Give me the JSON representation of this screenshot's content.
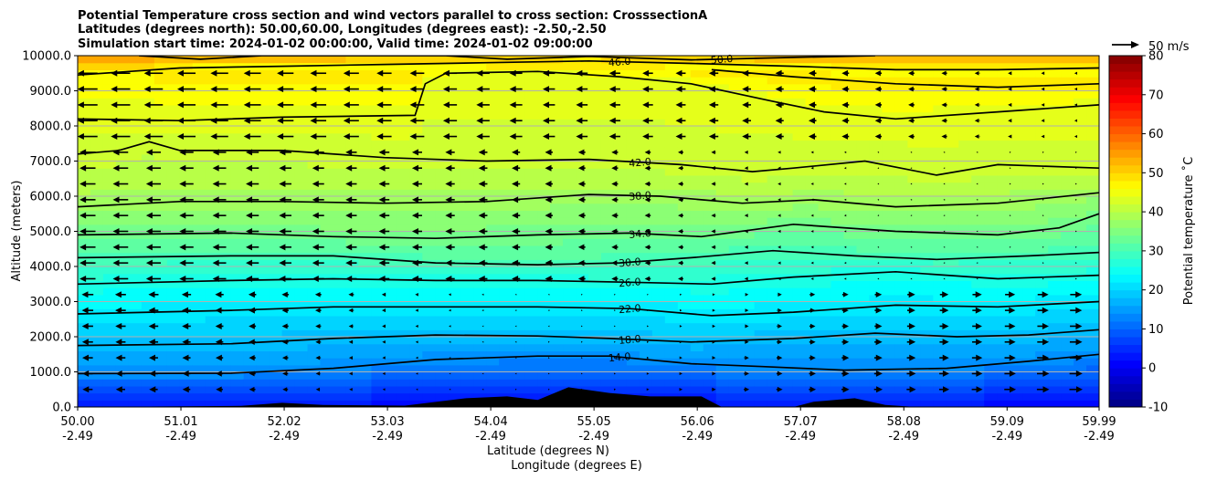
{
  "chart_data": {
    "type": "contour",
    "title_lines": [
      "Potential Temperature cross section and wind vectors parallel to cross section: CrosssectionA",
      "Latitudes (degrees north): 50.00,60.00, Longitudes (degrees east): -2.50,-2.50",
      "Simulation start time: 2024-01-02 00:00:00, Valid time: 2024-01-02 09:00:00"
    ],
    "xlabel_lines": [
      "Latitude (degrees N)",
      "Longitude (degrees E)"
    ],
    "ylabel": "Altitude (meters)",
    "xlim": [
      50.0,
      59.99
    ],
    "ylim": [
      0,
      10000
    ],
    "x_ticks": [
      {
        "value": 50.0,
        "lat": "50.00",
        "lon": "-2.49"
      },
      {
        "value": 51.01,
        "lat": "51.01",
        "lon": "-2.49"
      },
      {
        "value": 52.02,
        "lat": "52.02",
        "lon": "-2.49"
      },
      {
        "value": 53.03,
        "lat": "53.03",
        "lon": "-2.49"
      },
      {
        "value": 54.04,
        "lat": "54.04",
        "lon": "-2.49"
      },
      {
        "value": 55.05,
        "lat": "55.05",
        "lon": "-2.49"
      },
      {
        "value": 56.06,
        "lat": "56.06",
        "lon": "-2.49"
      },
      {
        "value": 57.07,
        "lat": "57.07",
        "lon": "-2.49"
      },
      {
        "value": 58.08,
        "lat": "58.08",
        "lon": "-2.49"
      },
      {
        "value": 59.09,
        "lat": "59.09",
        "lon": "-2.49"
      },
      {
        "value": 59.99,
        "lat": "59.99",
        "lon": "-2.49"
      }
    ],
    "y_ticks": [
      "0.0",
      "1000.0",
      "2000.0",
      "3000.0",
      "4000.0",
      "5000.0",
      "6000.0",
      "7000.0",
      "8000.0",
      "9000.0",
      "10000.0"
    ],
    "y_tick_values": [
      0,
      1000,
      2000,
      3000,
      4000,
      5000,
      6000,
      7000,
      8000,
      9000,
      10000
    ],
    "colorbar": {
      "label": "Potential temperature $^\\circ$C",
      "label_display": "Potential temperature ˚C",
      "range": [
        -10,
        80
      ],
      "ticks": [
        "-10",
        "0",
        "10",
        "20",
        "30",
        "40",
        "50",
        "60",
        "70",
        "80"
      ],
      "tick_values": [
        -10,
        0,
        10,
        20,
        30,
        40,
        50,
        60,
        70,
        80
      ],
      "colormap": "jet"
    },
    "quiver_key": {
      "label": "50 m/s",
      "speed": 50
    },
    "contour_levels": [
      {
        "label": "14.0",
        "value": 14,
        "points": [
          [
            50.0,
            950
          ],
          [
            51.5,
            960
          ],
          [
            52.5,
            1100
          ],
          [
            53.5,
            1350
          ],
          [
            54.5,
            1450
          ],
          [
            55.2,
            1450
          ],
          [
            56.0,
            1230
          ],
          [
            56.7,
            1150
          ],
          [
            57.5,
            1050
          ],
          [
            58.5,
            1100
          ],
          [
            59.3,
            1300
          ],
          [
            59.99,
            1500
          ]
        ]
      },
      {
        "label": "18.0",
        "value": 18,
        "points": [
          [
            50.0,
            1750
          ],
          [
            51.5,
            1800
          ],
          [
            52.5,
            1950
          ],
          [
            53.5,
            2050
          ],
          [
            54.5,
            2020
          ],
          [
            55.2,
            1950
          ],
          [
            56.0,
            1850
          ],
          [
            57.0,
            1950
          ],
          [
            57.8,
            2100
          ],
          [
            58.6,
            2000
          ],
          [
            59.3,
            2050
          ],
          [
            59.99,
            2200
          ]
        ]
      },
      {
        "label": "22.0",
        "value": 22,
        "points": [
          [
            50.0,
            2650
          ],
          [
            51.5,
            2750
          ],
          [
            52.5,
            2850
          ],
          [
            53.5,
            2850
          ],
          [
            54.5,
            2850
          ],
          [
            55.4,
            2800
          ],
          [
            56.2,
            2600
          ],
          [
            57.0,
            2700
          ],
          [
            58.0,
            2900
          ],
          [
            59.0,
            2850
          ],
          [
            59.99,
            3000
          ]
        ]
      },
      {
        "label": "26.0",
        "value": 26,
        "points": [
          [
            50.0,
            3500
          ],
          [
            51.5,
            3600
          ],
          [
            52.5,
            3650
          ],
          [
            53.5,
            3600
          ],
          [
            54.5,
            3600
          ],
          [
            55.4,
            3550
          ],
          [
            56.2,
            3500
          ],
          [
            57.0,
            3700
          ],
          [
            58.0,
            3850
          ],
          [
            59.0,
            3650
          ],
          [
            59.99,
            3750
          ]
        ]
      },
      {
        "label": "30.0",
        "value": 30,
        "points": [
          [
            50.0,
            4250
          ],
          [
            51.5,
            4300
          ],
          [
            52.5,
            4300
          ],
          [
            53.5,
            4100
          ],
          [
            54.5,
            4050
          ],
          [
            55.3,
            4100
          ],
          [
            56.0,
            4250
          ],
          [
            56.8,
            4450
          ],
          [
            57.6,
            4300
          ],
          [
            58.4,
            4200
          ],
          [
            59.3,
            4300
          ],
          [
            59.99,
            4400
          ]
        ]
      },
      {
        "label": "34.0",
        "value": 34,
        "points": [
          [
            50.0,
            4900
          ],
          [
            51.5,
            4950
          ],
          [
            52.5,
            4850
          ],
          [
            53.5,
            4800
          ],
          [
            54.5,
            4900
          ],
          [
            55.4,
            4950
          ],
          [
            56.1,
            4850
          ],
          [
            57.0,
            5200
          ],
          [
            58.0,
            5000
          ],
          [
            59.0,
            4900
          ],
          [
            59.6,
            5100
          ],
          [
            59.99,
            5500
          ]
        ]
      },
      {
        "label": "38.0",
        "value": 38,
        "points": [
          [
            50.0,
            5700
          ],
          [
            51.0,
            5850
          ],
          [
            52.0,
            5850
          ],
          [
            53.0,
            5800
          ],
          [
            54.0,
            5850
          ],
          [
            55.0,
            6050
          ],
          [
            55.7,
            6000
          ],
          [
            56.5,
            5800
          ],
          [
            57.2,
            5900
          ],
          [
            58.0,
            5700
          ],
          [
            59.0,
            5800
          ],
          [
            59.99,
            6100
          ]
        ]
      },
      {
        "label": "42.0",
        "value": 42,
        "points": [
          [
            50.0,
            7200
          ],
          [
            50.4,
            7300
          ],
          [
            50.7,
            7550
          ],
          [
            51.0,
            7300
          ],
          [
            52.0,
            7300
          ],
          [
            53.0,
            7100
          ],
          [
            54.0,
            7000
          ],
          [
            55.0,
            7050
          ],
          [
            55.9,
            6900
          ],
          [
            56.6,
            6700
          ],
          [
            57.0,
            6800
          ],
          [
            57.7,
            7000
          ],
          [
            58.4,
            6600
          ],
          [
            59.0,
            6900
          ],
          [
            59.99,
            6800
          ]
        ]
      },
      {
        "label": "46.0",
        "value": 46,
        "points": [
          [
            50.0,
            9450
          ],
          [
            51.0,
            9650
          ],
          [
            52.0,
            9700
          ],
          [
            53.0,
            9750
          ],
          [
            54.0,
            9800
          ],
          [
            55.0,
            9850
          ],
          [
            56.0,
            9780
          ],
          [
            57.0,
            9700
          ],
          [
            58.0,
            9600
          ],
          [
            59.0,
            9600
          ],
          [
            59.99,
            9650
          ]
        ]
      },
      {
        "label": "50.0",
        "value": 50,
        "points": [
          [
            50.6,
            10000
          ],
          [
            51.2,
            9900
          ],
          [
            51.8,
            10000
          ],
          [
            53.6,
            10000
          ],
          [
            54.2,
            9900
          ],
          [
            55.0,
            9980
          ],
          [
            56.0,
            9880
          ],
          [
            57.0,
            9950
          ],
          [
            57.8,
            10000
          ]
        ]
      }
    ],
    "extra_contours": [
      {
        "label": "",
        "value": 44,
        "points": [
          [
            50.0,
            8200
          ],
          [
            51.0,
            8150
          ],
          [
            52.0,
            8250
          ],
          [
            53.3,
            8300
          ],
          [
            53.4,
            9200
          ],
          [
            53.6,
            9500
          ],
          [
            54.5,
            9550
          ],
          [
            55.3,
            9400
          ],
          [
            56.0,
            9200
          ],
          [
            56.8,
            8700
          ],
          [
            57.3,
            8400
          ],
          [
            58.0,
            8200
          ],
          [
            59.0,
            8400
          ],
          [
            59.99,
            8600
          ]
        ]
      },
      {
        "label": "",
        "value": 48,
        "points": [
          [
            56.2,
            9600
          ],
          [
            57.0,
            9400
          ],
          [
            58.0,
            9200
          ],
          [
            59.0,
            9100
          ],
          [
            59.99,
            9200
          ]
        ]
      }
    ],
    "terrain": [
      [
        50.0,
        0
      ],
      [
        51.6,
        30
      ],
      [
        52.0,
        120
      ],
      [
        52.4,
        60
      ],
      [
        53.2,
        40
      ],
      [
        53.8,
        250
      ],
      [
        54.2,
        300
      ],
      [
        54.5,
        200
      ],
      [
        54.8,
        560
      ],
      [
        55.2,
        400
      ],
      [
        55.6,
        300
      ],
      [
        56.1,
        300
      ],
      [
        56.3,
        0
      ],
      [
        57.0,
        0
      ],
      [
        57.2,
        150
      ],
      [
        57.6,
        250
      ],
      [
        57.9,
        60
      ],
      [
        58.2,
        0
      ],
      [
        59.99,
        0
      ]
    ]
  }
}
